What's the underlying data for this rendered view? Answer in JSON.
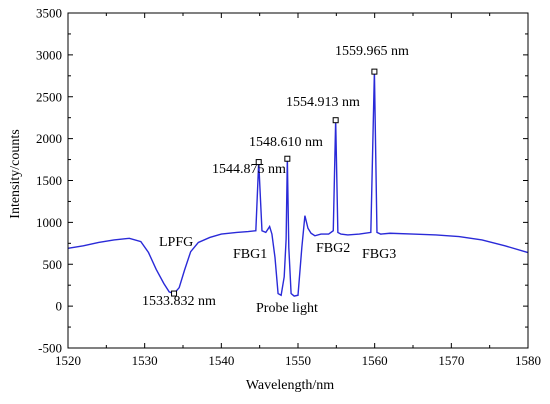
{
  "chart_data": {
    "type": "line",
    "xlabel": "Wavelength/nm",
    "ylabel": "Intensity/counts",
    "xlim": [
      1520,
      1580
    ],
    "ylim": [
      -500,
      3500
    ],
    "x_ticks": [
      1520,
      1530,
      1540,
      1550,
      1560,
      1570,
      1580
    ],
    "y_ticks": [
      -500,
      0,
      500,
      1000,
      1500,
      2000,
      2500,
      3000,
      3500
    ],
    "x_tick_labels": [
      "1520",
      "1530",
      "1540",
      "1550",
      "1560",
      "1570",
      "1580"
    ],
    "y_tick_labels": [
      "-500",
      "0",
      "500",
      "1000",
      "1500",
      "2000",
      "2500",
      "3000",
      "3500"
    ],
    "grid": false,
    "line_color": "#2a2ad8",
    "series": [
      {
        "x": [
          1520,
          1522,
          1524,
          1526,
          1528,
          1529.5,
          1530.5,
          1531.5,
          1532.5,
          1533.2,
          1533.832,
          1534.5,
          1535.2,
          1536,
          1537,
          1538.5,
          1540,
          1542,
          1543.5,
          1544.5,
          1544.875,
          1545.3,
          1545.8,
          1546.3,
          1546.6,
          1547,
          1547.4,
          1547.8,
          1548.2,
          1548.45,
          1548.61,
          1548.8,
          1549.1,
          1549.5,
          1550,
          1550.5,
          1550.9,
          1551.3,
          1551.7,
          1552.2,
          1553,
          1554,
          1554.6,
          1554.913,
          1555.2,
          1555.6,
          1556.5,
          1558,
          1559.5,
          1559.965,
          1560.3,
          1560.8,
          1562,
          1565,
          1568,
          1571,
          1574,
          1577,
          1580
        ],
        "y": [
          690,
          720,
          760,
          790,
          810,
          770,
          640,
          440,
          270,
          170,
          150,
          220,
          430,
          650,
          760,
          820,
          860,
          880,
          890,
          900,
          1720,
          900,
          880,
          950,
          860,
          580,
          150,
          130,
          350,
          800,
          1760,
          700,
          150,
          120,
          130,
          700,
          1080,
          930,
          870,
          840,
          860,
          860,
          900,
          2220,
          880,
          860,
          850,
          860,
          880,
          2800,
          880,
          860,
          870,
          860,
          850,
          830,
          790,
          720,
          640
        ]
      }
    ],
    "annotations": [
      {
        "text": "1533.832 nm",
        "x": 1533.832,
        "y": 150
      },
      {
        "text": "1544.875 nm",
        "x": 1544.875,
        "y": 1720
      },
      {
        "text": "1548.610 nm",
        "x": 1548.61,
        "y": 1760
      },
      {
        "text": "1554.913 nm",
        "x": 1554.913,
        "y": 2220
      },
      {
        "text": "1559.965 nm",
        "x": 1559.965,
        "y": 2800
      }
    ],
    "region_labels": [
      "LPFG",
      "FBG1",
      "FBG2",
      "FBG3",
      "Probe light"
    ]
  }
}
